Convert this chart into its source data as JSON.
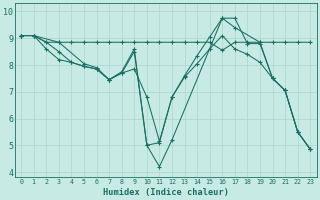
{
  "xlabel": "Humidex (Indice chaleur)",
  "bg_color": "#c8eae4",
  "grid_color": "#b0d8d0",
  "line_color": "#1a6e62",
  "xlim": [
    -0.5,
    23.5
  ],
  "ylim": [
    3.8,
    10.3
  ],
  "yticks": [
    4,
    5,
    6,
    7,
    8,
    9,
    10
  ],
  "xticks": [
    0,
    1,
    2,
    3,
    4,
    5,
    6,
    7,
    8,
    9,
    10,
    11,
    12,
    13,
    14,
    15,
    16,
    17,
    18,
    19,
    20,
    21,
    22,
    23
  ],
  "line1_x": [
    0,
    1,
    2,
    3,
    4,
    5,
    6,
    7,
    8,
    9,
    10,
    11,
    12,
    13,
    14,
    15,
    16,
    17,
    18,
    19,
    20,
    21,
    22,
    23
  ],
  "line1_y": [
    9.1,
    9.1,
    8.85,
    8.85,
    8.85,
    8.85,
    8.85,
    8.85,
    8.85,
    8.85,
    8.85,
    8.85,
    8.85,
    8.85,
    8.85,
    8.85,
    8.55,
    8.85,
    8.85,
    8.85,
    8.85,
    8.85,
    8.85,
    8.85
  ],
  "line2_x": [
    0,
    1,
    3,
    5,
    6,
    7,
    8,
    9,
    10,
    11,
    12,
    16,
    17,
    19,
    20,
    21,
    22,
    23
  ],
  "line2_y": [
    9.1,
    9.1,
    8.85,
    8.05,
    7.9,
    7.45,
    7.7,
    8.5,
    5.0,
    4.2,
    5.2,
    9.75,
    9.4,
    8.85,
    7.5,
    7.05,
    5.5,
    4.85
  ],
  "line3_x": [
    0,
    1,
    2,
    3,
    4,
    5,
    6,
    7,
    8,
    9,
    10,
    11,
    12,
    13,
    14,
    15,
    16,
    17,
    18,
    19,
    20,
    21,
    22,
    23
  ],
  "line3_y": [
    9.1,
    9.1,
    8.6,
    8.2,
    8.1,
    7.95,
    7.85,
    7.45,
    7.7,
    7.85,
    6.8,
    5.15,
    6.8,
    7.55,
    8.05,
    8.6,
    9.1,
    8.6,
    8.4,
    8.1,
    7.5,
    7.05,
    5.5,
    4.85
  ],
  "line4_x": [
    0,
    1,
    2,
    3,
    4,
    5,
    6,
    7,
    8,
    9,
    10,
    11,
    12,
    13,
    14,
    15,
    16,
    17,
    18,
    19,
    20,
    21,
    22,
    23
  ],
  "line4_y": [
    9.1,
    9.1,
    8.85,
    8.5,
    8.1,
    7.95,
    7.85,
    7.45,
    7.75,
    8.6,
    5.0,
    5.1,
    6.8,
    7.6,
    8.35,
    9.05,
    9.75,
    9.75,
    8.8,
    8.8,
    7.5,
    7.05,
    5.5,
    4.85
  ]
}
